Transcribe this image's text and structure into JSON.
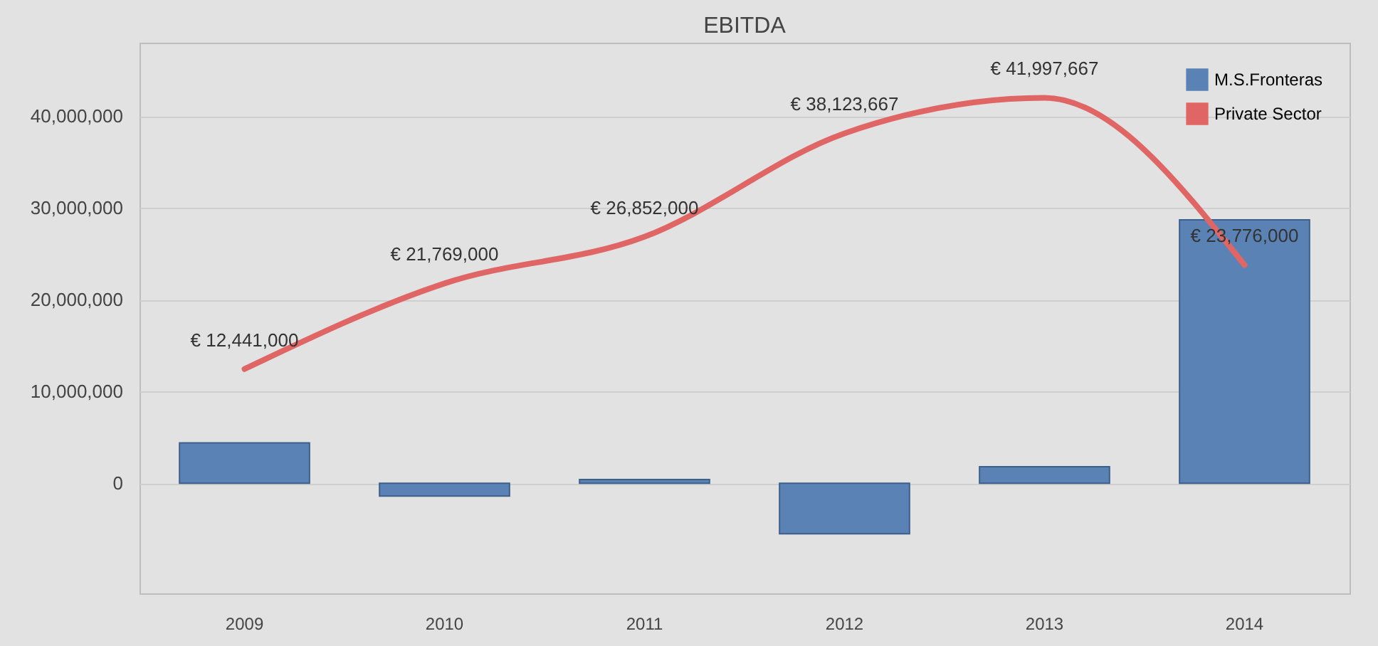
{
  "chart_data": {
    "type": "bar",
    "title": "EBITDA",
    "categories": [
      "2009",
      "2010",
      "2011",
      "2012",
      "2013",
      "2014"
    ],
    "series": [
      {
        "name": "M.S.Fronteras",
        "color": "#5b82b4",
        "values": [
          4400000,
          -1400000,
          400000,
          -5500000,
          1800000,
          28700000
        ]
      },
      {
        "name": "Private Sector",
        "type": "line",
        "color": "#e06666",
        "values": [
          12441000,
          21769000,
          26852000,
          38123667,
          41997667,
          23776000
        ],
        "value_labels": [
          "€ 12,441,000",
          "€ 21,769,000",
          "€ 26,852,000",
          "€ 38,123,667",
          "€ 41,997,667",
          "€ 23,776,000"
        ]
      }
    ],
    "ylim": [
      -12000000,
      48000000
    ],
    "yticks": [
      0,
      {
        "value": 10000000,
        "label": "10,000,000"
      },
      {
        "value": 20000000,
        "label": "20,000,000"
      },
      {
        "value": 30000000,
        "label": "30,000,000"
      },
      {
        "value": 40000000,
        "label": "40,000,000"
      }
    ],
    "grid": "y",
    "legend": "top right"
  }
}
